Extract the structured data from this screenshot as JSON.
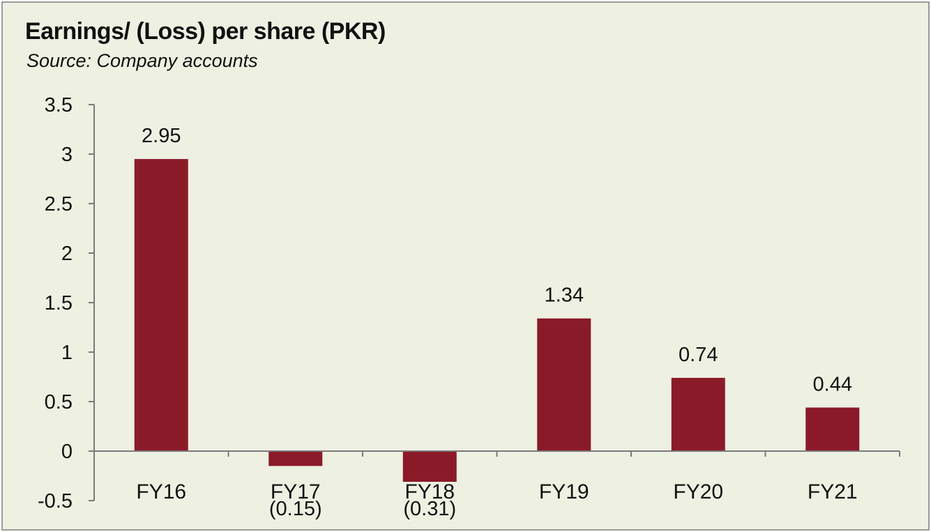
{
  "chart_data": {
    "type": "bar",
    "title": "Earnings/ (Loss) per share (PKR)",
    "subtitle": "Source: Company accounts",
    "categories": [
      "FY16",
      "FY17",
      "FY18",
      "FY19",
      "FY20",
      "FY21"
    ],
    "values": [
      2.95,
      -0.15,
      -0.31,
      1.34,
      0.74,
      0.44
    ],
    "data_labels": [
      "2.95",
      "(0.15)",
      "(0.31)",
      "1.34",
      "0.74",
      "0.44"
    ],
    "ylim": [
      -0.5,
      3.5
    ],
    "yticks": [
      "3.5",
      "3",
      "2.5",
      "2",
      "1.5",
      "1",
      "0.5",
      "0",
      "-0.5"
    ],
    "ytick_values": [
      3.5,
      3,
      2.5,
      2,
      1.5,
      1,
      0.5,
      0,
      -0.5
    ],
    "xlabel": "",
    "ylabel": "",
    "grid": false,
    "legend": "none",
    "bar_color": "#8b1a28",
    "background_color": "#eef0e2"
  }
}
